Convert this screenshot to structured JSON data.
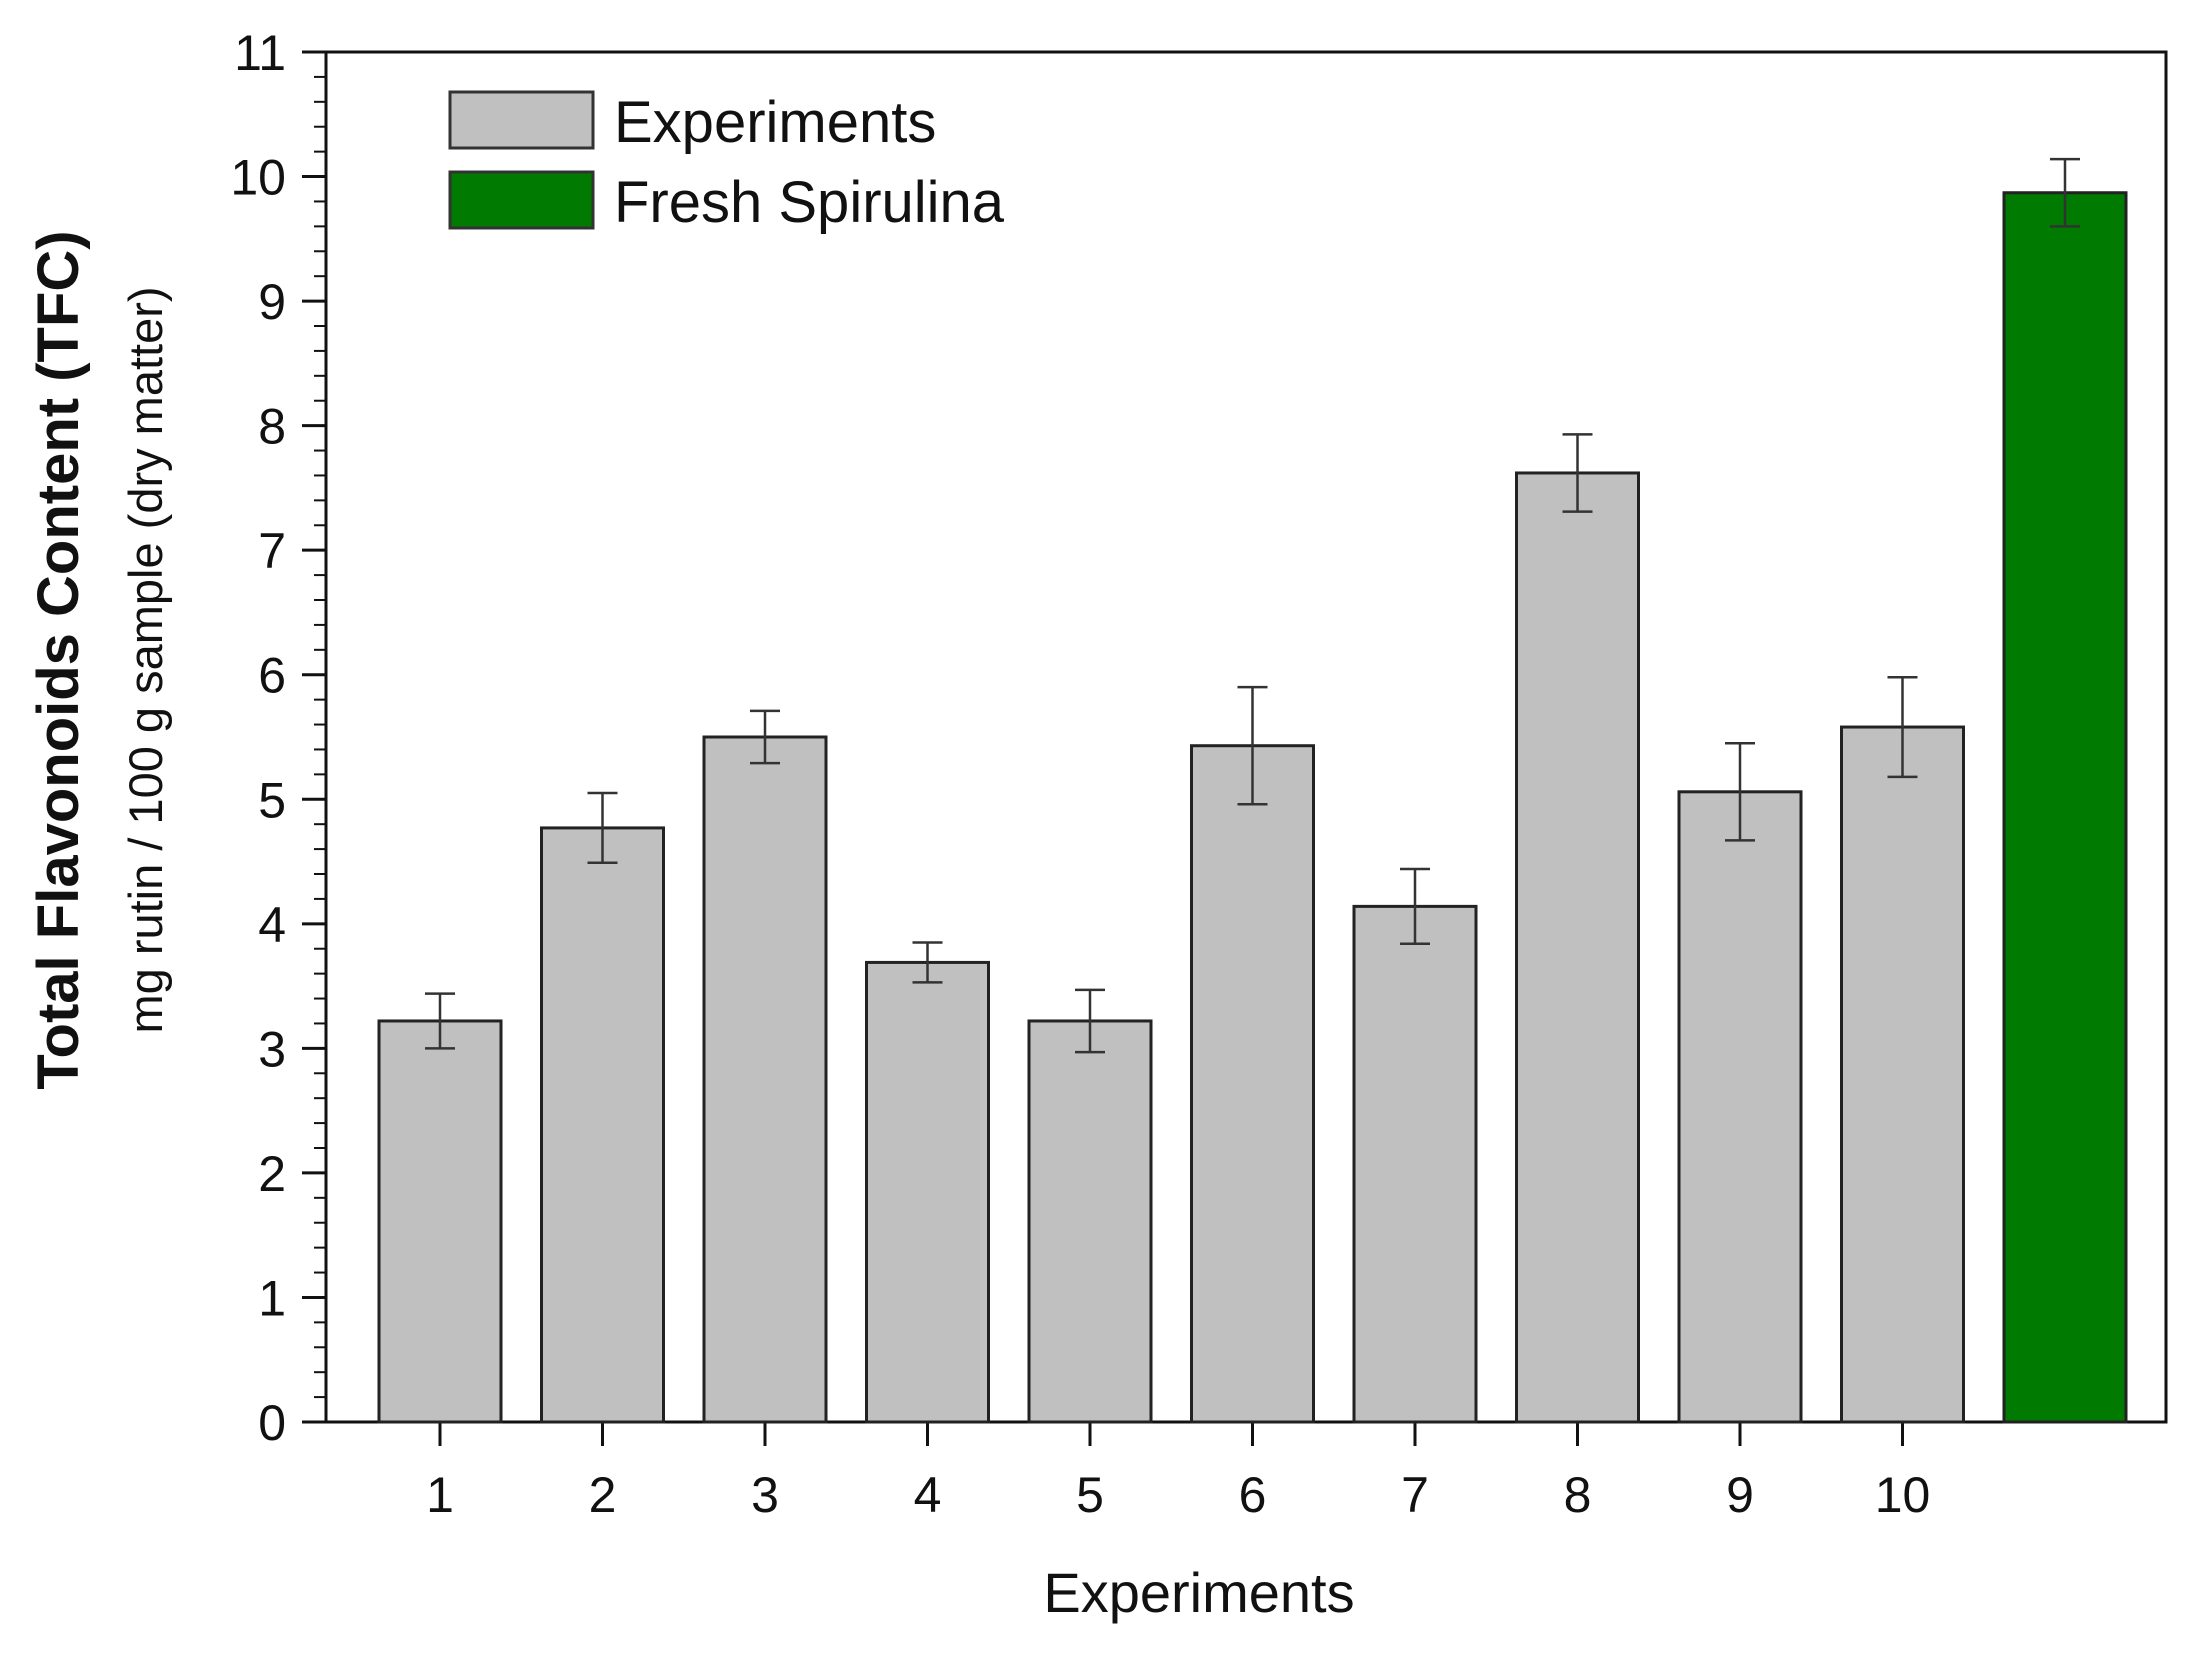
{
  "chart_data": {
    "type": "bar",
    "title": "",
    "xlabel": "Experiments",
    "ylabel": "Total Flavonoids Content (TFC)",
    "ylabel_sub": "mg rutin / 100 g sample (dry matter)",
    "ylim": [
      0,
      11
    ],
    "yticks": [
      "0",
      "1",
      "2",
      "3",
      "4",
      "5",
      "6",
      "7",
      "8",
      "9",
      "10",
      "11"
    ],
    "legend_position": "top-left",
    "colors": {
      "Experiments": "#c0c0c0",
      "Fresh Spirulina": "#007a00"
    },
    "series": [
      {
        "name": "Experiments",
        "color": "#c0c0c0",
        "categories": [
          "1",
          "2",
          "3",
          "4",
          "5",
          "6",
          "7",
          "8",
          "9",
          "10"
        ],
        "values": [
          3.22,
          4.77,
          5.5,
          3.69,
          3.22,
          5.43,
          4.14,
          7.62,
          5.06,
          5.58
        ],
        "errors": [
          0.22,
          0.28,
          0.21,
          0.16,
          0.25,
          0.47,
          0.3,
          0.31,
          0.39,
          0.4
        ]
      },
      {
        "name": "Fresh Spirulina",
        "color": "#007a00",
        "categories": [
          ""
        ],
        "values": [
          9.87
        ],
        "errors": [
          0.27
        ]
      }
    ]
  }
}
